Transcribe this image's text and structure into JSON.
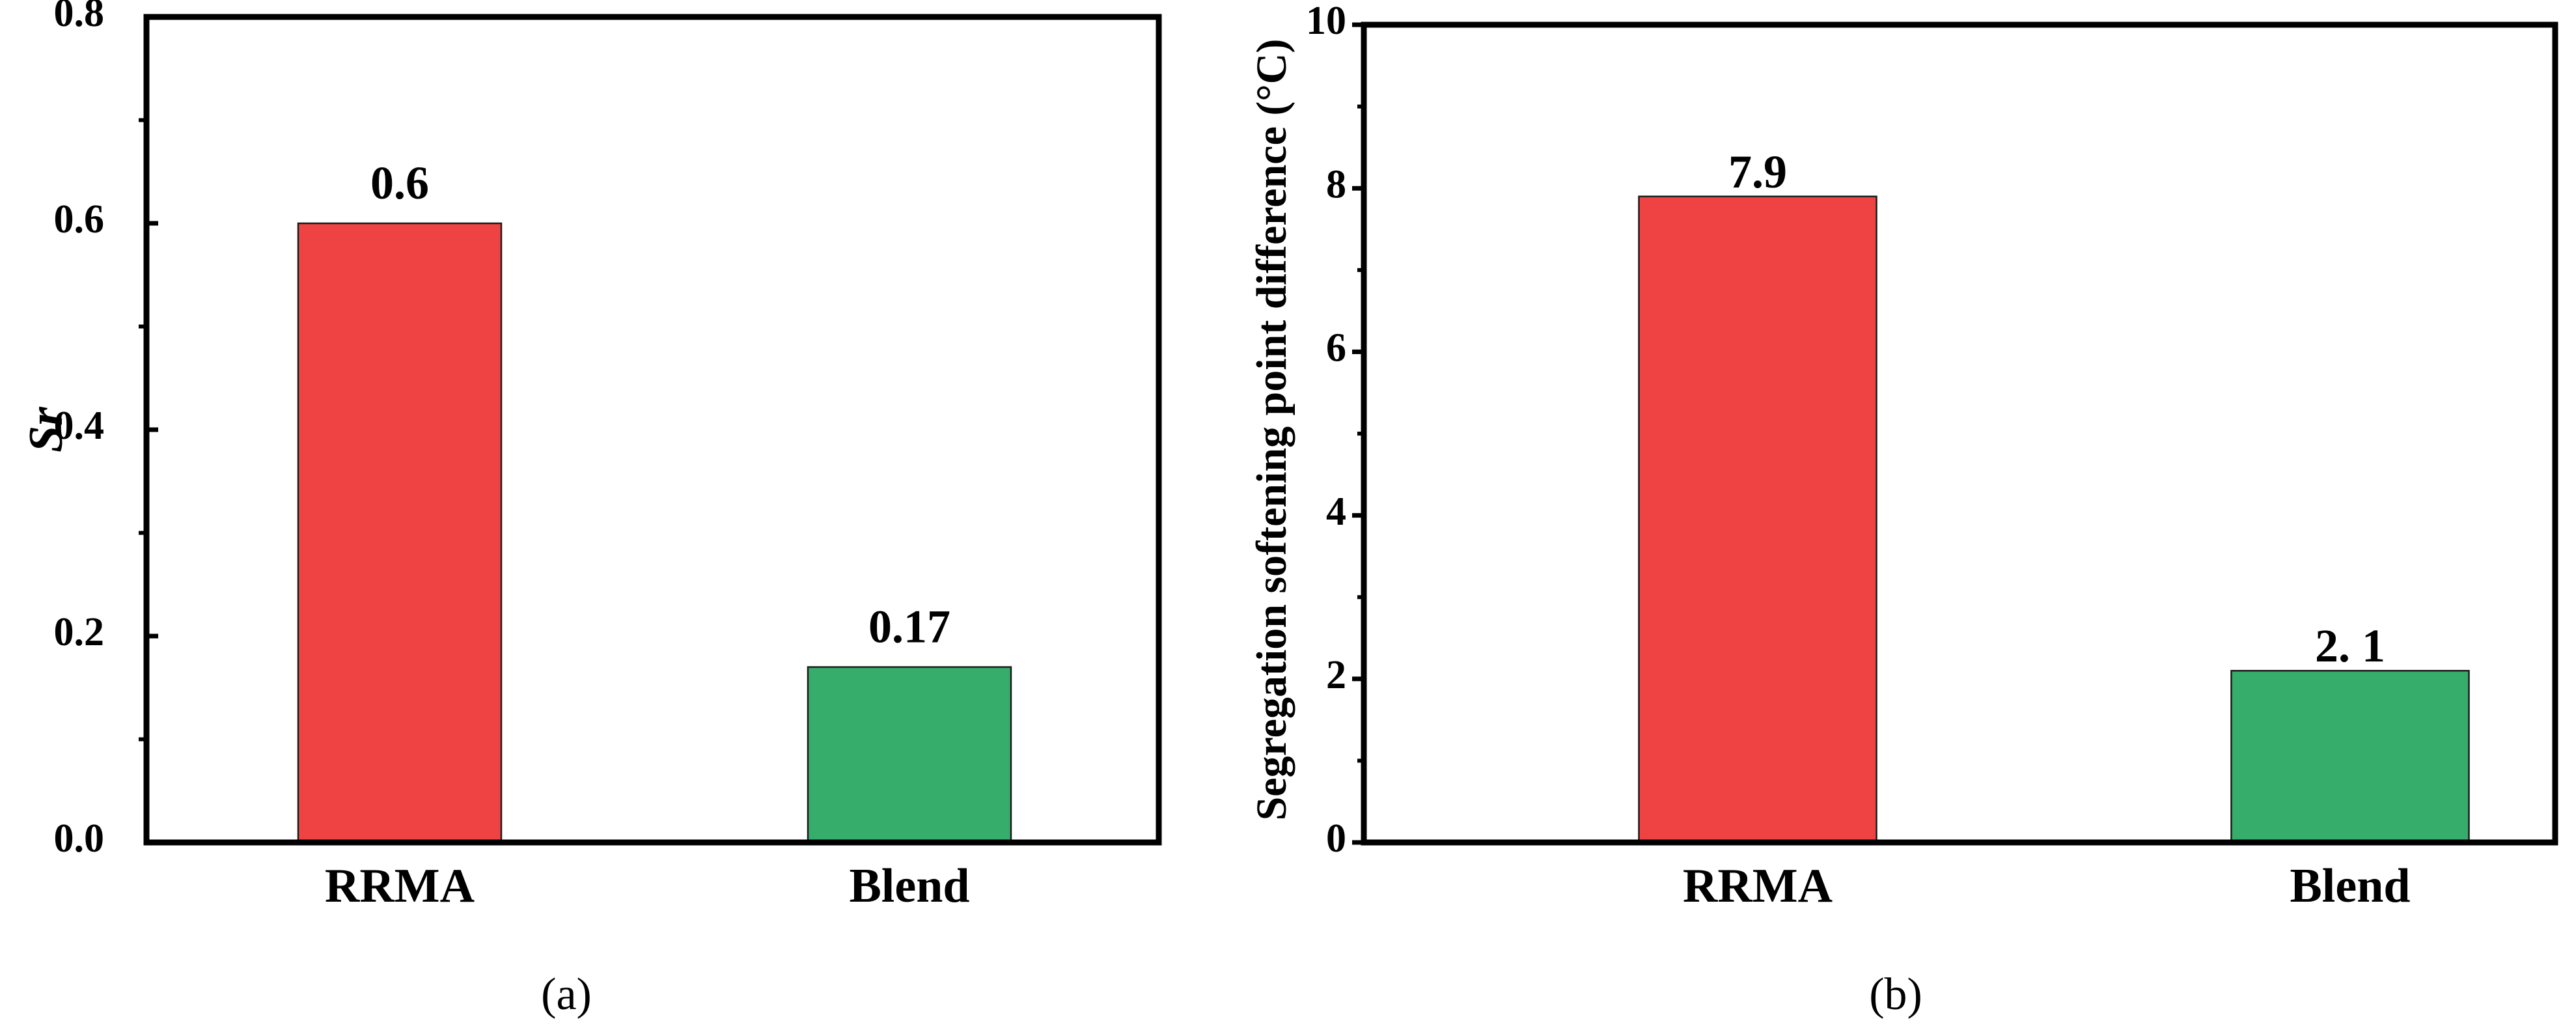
{
  "chart_data": [
    {
      "type": "bar",
      "panel_label": "(a)",
      "title": "",
      "xlabel": "",
      "ylabel": "Sr",
      "ylim": [
        0,
        0.8
      ],
      "yticks": [
        "0.0",
        "0.2",
        "0.4",
        "0.6",
        "0.8"
      ],
      "ytick_values": [
        0,
        0.2,
        0.4,
        0.6,
        0.8
      ],
      "minor_tick_values": [
        0.1,
        0.3,
        0.5,
        0.7
      ],
      "categories": [
        "RRMA",
        "Blend"
      ],
      "values": [
        0.6,
        0.17
      ],
      "data_labels": [
        "0.6",
        "0.17"
      ],
      "colors": [
        "#EF4343",
        "#36AD6A"
      ],
      "grid": false,
      "legend": "none"
    },
    {
      "type": "bar",
      "panel_label": "(b)",
      "title": "",
      "xlabel": "",
      "ylabel": "Segregation softening point difference (°C)",
      "ylim": [
        0,
        10
      ],
      "yticks": [
        "0",
        "2",
        "4",
        "6",
        "8",
        "10"
      ],
      "ytick_values": [
        0,
        2,
        4,
        6,
        8,
        10
      ],
      "minor_tick_values": [
        1,
        3,
        5,
        7,
        9
      ],
      "categories": [
        "RRMA",
        "Blend"
      ],
      "values": [
        7.9,
        2.1
      ],
      "data_labels": [
        "7.9",
        "2. 1"
      ],
      "colors": [
        "#EF4343",
        "#36AD6A"
      ],
      "grid": false,
      "legend": "none"
    }
  ]
}
